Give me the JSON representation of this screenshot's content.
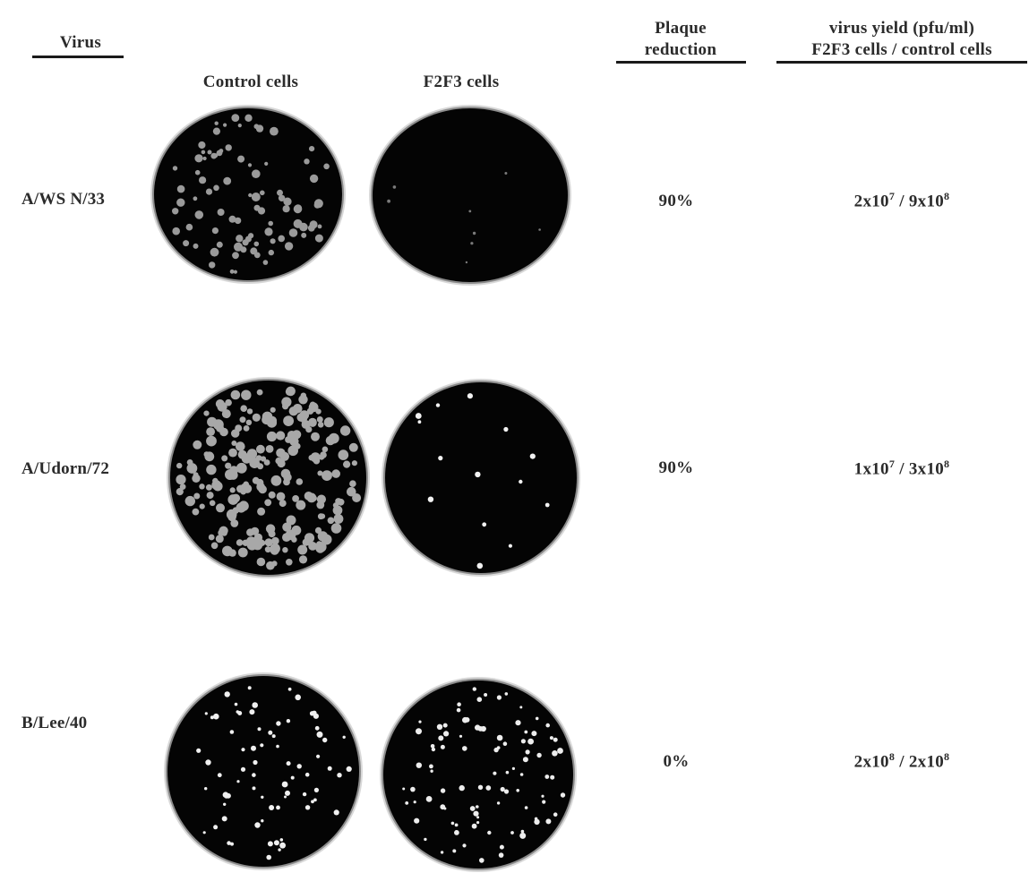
{
  "headers": {
    "virus": "Virus",
    "control": "Control cells",
    "f2f3": "F2F3 cells",
    "plaque_line1": "Plaque",
    "plaque_line2": "reduction",
    "yield_line1": "virus yield (pfu/ml)",
    "yield_line2": "F2F3 cells / control cells"
  },
  "rows": [
    {
      "virus": "A/WS N/33",
      "plaque_reduction": "90%",
      "yield": {
        "f2f3_mant": "2x10",
        "f2f3_exp": "7",
        "sep": " / ",
        "ctrl_mant": "9x10",
        "ctrl_exp": "8"
      },
      "dish_control": {
        "plaques": 90,
        "plaque_color": "#9a9a9a",
        "size_min": 2,
        "size_max": 5,
        "seed": 11
      },
      "dish_f2f3": {
        "plaques": 8,
        "plaque_color": "#7a7a7a",
        "size_min": 1,
        "size_max": 2,
        "seed": 23
      }
    },
    {
      "virus": "A/Udorn/72",
      "plaque_reduction": "90%",
      "yield": {
        "f2f3_mant": "1x10",
        "f2f3_exp": "7",
        "sep": " / ",
        "ctrl_mant": "3x10",
        "ctrl_exp": "8"
      },
      "dish_control": {
        "plaques": 230,
        "plaque_color": "#a8a8a8",
        "size_min": 3,
        "size_max": 6,
        "seed": 37
      },
      "dish_f2f3": {
        "plaques": 14,
        "plaque_color": "#f2f2f2",
        "size_min": 1.5,
        "size_max": 3.5,
        "seed": 41
      }
    },
    {
      "virus": "B/Lee/40",
      "plaque_reduction": "0%",
      "yield": {
        "f2f3_mant": "2x10",
        "f2f3_exp": "8",
        "sep": " / ",
        "ctrl_mant": "2x10",
        "ctrl_exp": "8"
      },
      "dish_control": {
        "plaques": 75,
        "plaque_color": "#f0f0f0",
        "size_min": 1.5,
        "size_max": 3.5,
        "seed": 53
      },
      "dish_f2f3": {
        "plaques": 95,
        "plaque_color": "#ededed",
        "size_min": 1.5,
        "size_max": 3.5,
        "seed": 67
      }
    }
  ]
}
